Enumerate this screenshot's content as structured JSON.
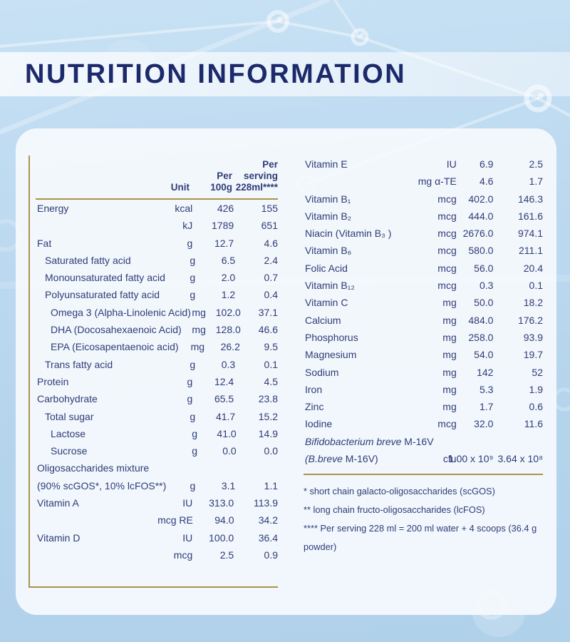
{
  "title": "NUTRITION INFORMATION",
  "colors": {
    "background_blue": "#bcd9f0",
    "card_white": "#f6fafd",
    "navy_text": "#2f3c78",
    "title_navy": "#1c296b",
    "gold_rule": "#ab934b"
  },
  "left_table": {
    "headers": {
      "unit": "Unit",
      "per100": "Per\n100g",
      "serving": "Per\nserving\n228ml****"
    },
    "rows": [
      {
        "label": "Energy",
        "indent": 0,
        "unit": "kcal",
        "per100": "426",
        "serving": "155"
      },
      {
        "label": "",
        "indent": 0,
        "unit": "kJ",
        "per100": "1789",
        "serving": "651"
      },
      {
        "label": "Fat",
        "indent": 0,
        "unit": "g",
        "per100": "12.7",
        "serving": "4.6"
      },
      {
        "label": "Saturated fatty acid",
        "indent": 1,
        "unit": "g",
        "per100": "6.5",
        "serving": "2.4"
      },
      {
        "label": "Monounsaturated fatty acid",
        "indent": 1,
        "unit": "g",
        "per100": "2.0",
        "serving": "0.7"
      },
      {
        "label": "Polyunsaturated fatty acid",
        "indent": 1,
        "unit": "g",
        "per100": "1.2",
        "serving": "0.4"
      },
      {
        "label": "Omega 3 (Alpha-Linolenic Acid)",
        "indent": 2,
        "unit": "mg",
        "per100": "102.0",
        "serving": "37.1"
      },
      {
        "label": "DHA (Docosahexaenoic Acid)",
        "indent": 2,
        "unit": "mg",
        "per100": "128.0",
        "serving": "46.6"
      },
      {
        "label": "EPA (Eicosapentaenoic acid)",
        "indent": 2,
        "unit": "mg",
        "per100": "26.2",
        "serving": "9.5"
      },
      {
        "label": "Trans fatty acid",
        "indent": 1,
        "unit": "g",
        "per100": "0.3",
        "serving": "0.1"
      },
      {
        "label": "Protein",
        "indent": 0,
        "unit": "g",
        "per100": "12.4",
        "serving": "4.5"
      },
      {
        "label": "Carbohydrate",
        "indent": 0,
        "unit": "g",
        "per100": "65.5",
        "serving": "23.8"
      },
      {
        "label": "Total sugar",
        "indent": 1,
        "unit": "g",
        "per100": "41.7",
        "serving": "15.2"
      },
      {
        "label": "Lactose",
        "indent": 2,
        "unit": "g",
        "per100": "41.0",
        "serving": "14.9"
      },
      {
        "label": "Sucrose",
        "indent": 2,
        "unit": "g",
        "per100": "0.0",
        "serving": "0.0"
      },
      {
        "label": "Oligosaccharides mixture",
        "indent": 0,
        "unit": "",
        "per100": "",
        "serving": ""
      },
      {
        "label": "(90% scGOS*, 10% lcFOS**)",
        "indent": 0,
        "unit": "g",
        "per100": "3.1",
        "serving": "1.1"
      },
      {
        "label": "Vitamin A",
        "indent": 0,
        "unit": "IU",
        "per100": "313.0",
        "serving": "113.9"
      },
      {
        "label": "",
        "indent": 0,
        "unit": "mcg RE",
        "per100": "94.0",
        "serving": "34.2"
      },
      {
        "label": "Vitamin D",
        "indent": 0,
        "unit": "IU",
        "per100": "100.0",
        "serving": "36.4"
      },
      {
        "label": "",
        "indent": 0,
        "unit": "mcg",
        "per100": "2.5",
        "serving": "0.9"
      }
    ]
  },
  "right_table": {
    "rows": [
      {
        "label": "Vitamin E",
        "indent": 0,
        "unit": "IU",
        "per100": "6.9",
        "serving": "2.5"
      },
      {
        "label": "",
        "indent": 0,
        "unit": "mg α-TE",
        "per100": "4.6",
        "serving": "1.7"
      },
      {
        "label": "Vitamin B₁",
        "indent": 0,
        "unit": "mcg",
        "per100": "402.0",
        "serving": "146.3"
      },
      {
        "label": "Vitamin B₂",
        "indent": 0,
        "unit": "mcg",
        "per100": "444.0",
        "serving": "161.6"
      },
      {
        "label": "Niacin (Vitamin B₃ )",
        "indent": 0,
        "unit": "mcg",
        "per100": "2676.0",
        "serving": "974.1"
      },
      {
        "label": "Vitamin B₆",
        "indent": 0,
        "unit": "mcg",
        "per100": "580.0",
        "serving": "211.1"
      },
      {
        "label": "Folic Acid",
        "indent": 0,
        "unit": "mcg",
        "per100": "56.0",
        "serving": "20.4"
      },
      {
        "label": "Vitamin B₁₂",
        "indent": 0,
        "unit": "mcg",
        "per100": "0.3",
        "serving": "0.1"
      },
      {
        "label": "Vitamin C",
        "indent": 0,
        "unit": "mg",
        "per100": "50.0",
        "serving": "18.2"
      },
      {
        "label": "Calcium",
        "indent": 0,
        "unit": "mg",
        "per100": "484.0",
        "serving": "176.2"
      },
      {
        "label": "Phosphorus",
        "indent": 0,
        "unit": "mg",
        "per100": "258.0",
        "serving": "93.9"
      },
      {
        "label": "Magnesium",
        "indent": 0,
        "unit": "mg",
        "per100": "54.0",
        "serving": "19.7"
      },
      {
        "label": "Sodium",
        "indent": 0,
        "unit": "mg",
        "per100": "142",
        "serving": "52"
      },
      {
        "label": "Iron",
        "indent": 0,
        "unit": "mg",
        "per100": "5.3",
        "serving": "1.9"
      },
      {
        "label": "Zinc",
        "indent": 0,
        "unit": "mg",
        "per100": "1.7",
        "serving": "0.6"
      },
      {
        "label": "Iodine",
        "indent": 0,
        "unit": "mcg",
        "per100": "32.0",
        "serving": "11.6"
      },
      {
        "segs": [
          {
            "t": "Bifidobacterium breve",
            "i": true
          },
          {
            "t": " M-16V",
            "i": false
          }
        ],
        "indent": 0,
        "unit": "",
        "per100": "",
        "serving": ""
      },
      {
        "segs": [
          {
            "t": "(B.breve",
            "i": true
          },
          {
            "t": " M-16V)",
            "i": false
          }
        ],
        "indent": 0,
        "unit": "cfu",
        "per100": "1.00 x 10⁹",
        "serving": "3.64 x 10⁸"
      }
    ]
  },
  "footnotes": [
    "* short chain galacto-oligosaccharides (scGOS)",
    "** long chain fructo-oligosaccharides (lcFOS)",
    "**** Per serving 228 ml = 200 ml water + 4 scoops (36.4 g powder)"
  ]
}
